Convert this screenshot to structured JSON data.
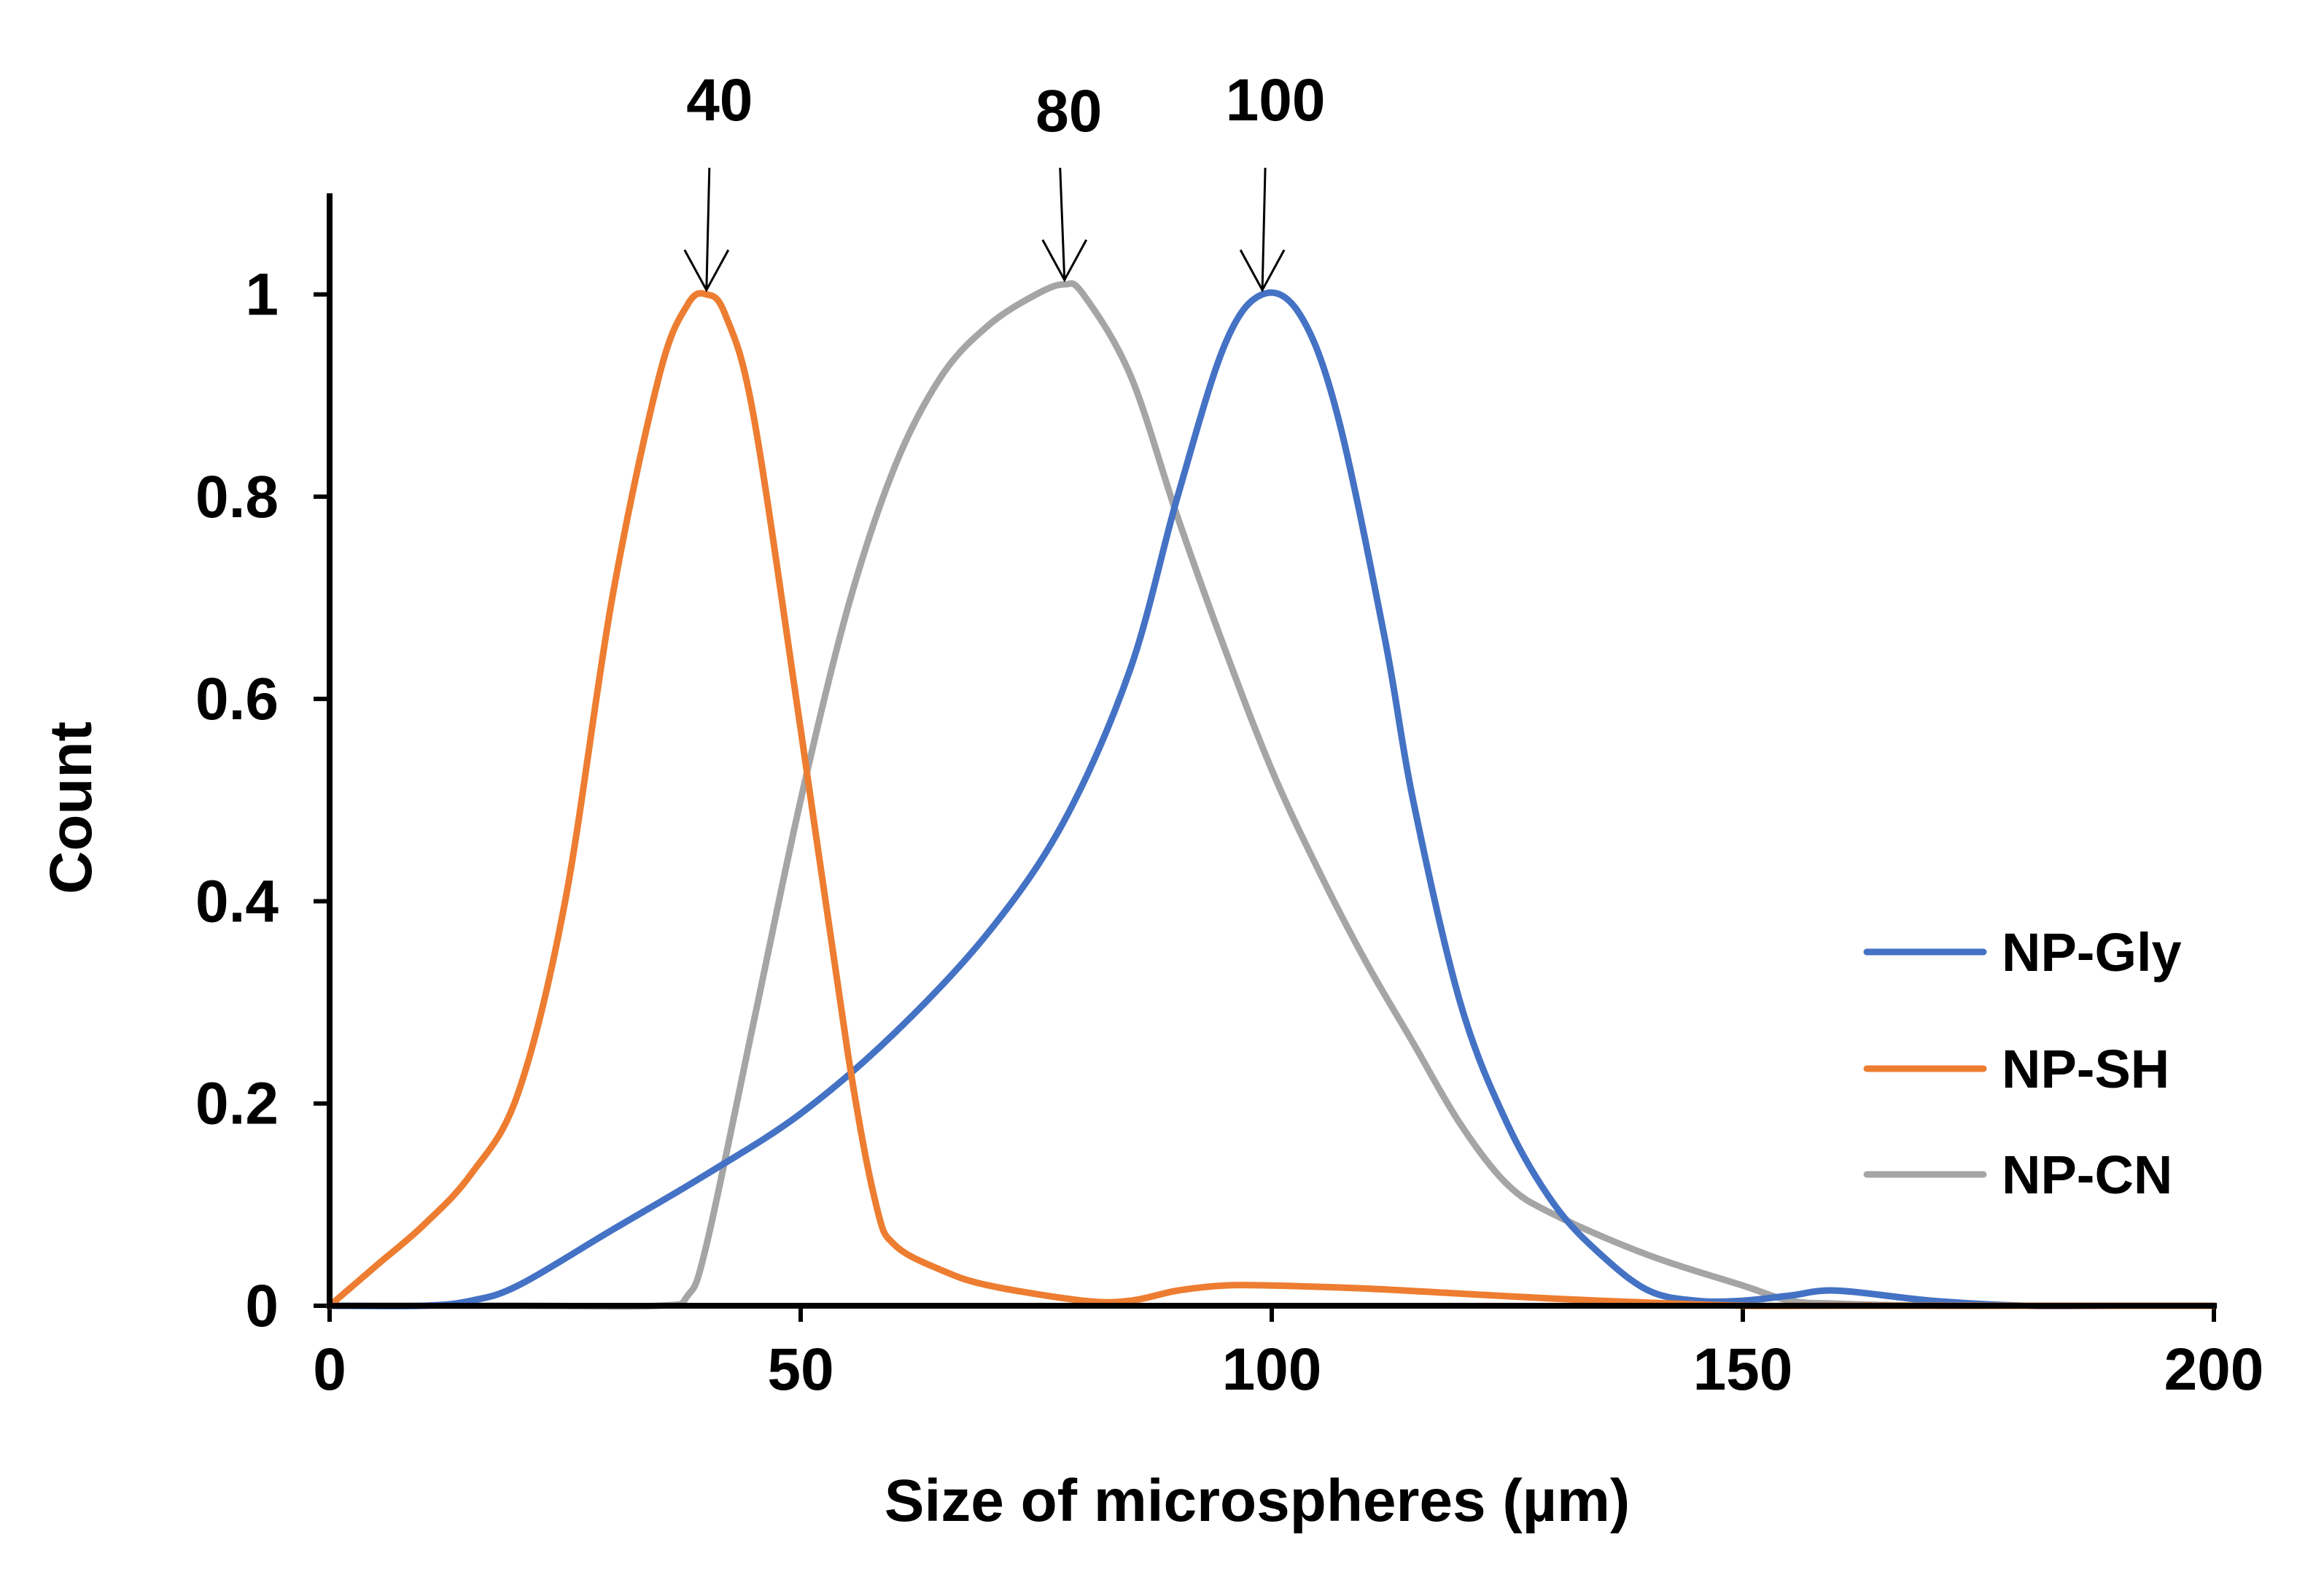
{
  "chart_data": {
    "type": "line",
    "title": "",
    "xlabel": "Size of microspheres (µm)",
    "ylabel": "Count",
    "xlim": [
      0,
      200
    ],
    "ylim": [
      0,
      1.1
    ],
    "grid": false,
    "x_ticks": [
      "0",
      "50",
      "100",
      "150",
      "200"
    ],
    "y_ticks": [
      "0",
      "0.2",
      "0.4",
      "0.6",
      "0.8",
      "1"
    ],
    "legend_position": "right",
    "series": [
      {
        "name": "NP-Gly",
        "color": "#4472C4",
        "x": [
          0,
          10,
          15,
          20,
          30,
          40,
          50,
          60,
          70,
          78,
          85,
          90,
          95,
          99,
          103,
          107,
          112,
          115,
          120,
          125,
          130,
          135,
          140,
          145,
          150,
          155,
          160,
          170,
          180,
          190,
          200
        ],
        "y": [
          0,
          0,
          0.005,
          0.02,
          0.075,
          0.13,
          0.19,
          0.27,
          0.37,
          0.48,
          0.63,
          0.8,
          0.95,
          1.0,
          0.98,
          0.88,
          0.66,
          0.5,
          0.3,
          0.18,
          0.1,
          0.05,
          0.015,
          0.005,
          0.005,
          0.01,
          0.015,
          0.005,
          0,
          0,
          0
        ]
      },
      {
        "name": "NP-SH",
        "color": "#ED7D31",
        "x": [
          0,
          5,
          10,
          15,
          20,
          25,
          30,
          35,
          38,
          40,
          42,
          45,
          50,
          55,
          58,
          60,
          65,
          70,
          80,
          85,
          90,
          95,
          100,
          110,
          120,
          130,
          140,
          150,
          160,
          170,
          180,
          190,
          200
        ],
        "y": [
          0,
          0.04,
          0.08,
          0.13,
          0.21,
          0.4,
          0.7,
          0.92,
          0.99,
          1.0,
          0.98,
          0.88,
          0.57,
          0.25,
          0.1,
          0.06,
          0.035,
          0.02,
          0.005,
          0.005,
          0.015,
          0.02,
          0.02,
          0.017,
          0.012,
          0.007,
          0.003,
          0,
          0,
          0,
          0,
          0,
          0
        ]
      },
      {
        "name": "NP-CN",
        "color": "#A5A5A5",
        "x": [
          0,
          20,
          35,
          38,
          40,
          45,
          50,
          55,
          60,
          65,
          70,
          75,
          78,
          80,
          85,
          90,
          95,
          100,
          105,
          110,
          115,
          120,
          125,
          130,
          140,
          150,
          155,
          160,
          170,
          180,
          190,
          200
        ],
        "y": [
          0,
          0,
          0,
          0.01,
          0.06,
          0.28,
          0.5,
          0.69,
          0.83,
          0.92,
          0.97,
          1.0,
          1.01,
          1.0,
          0.92,
          0.78,
          0.65,
          0.53,
          0.43,
          0.34,
          0.26,
          0.18,
          0.12,
          0.09,
          0.05,
          0.02,
          0.005,
          0.002,
          0,
          0,
          0,
          0
        ]
      }
    ],
    "annotations": [
      {
        "text": "40",
        "x": 40,
        "y": 1.0
      },
      {
        "text": "80",
        "x": 78,
        "y": 1.01
      },
      {
        "text": "100",
        "x": 99,
        "y": 1.0
      }
    ]
  }
}
